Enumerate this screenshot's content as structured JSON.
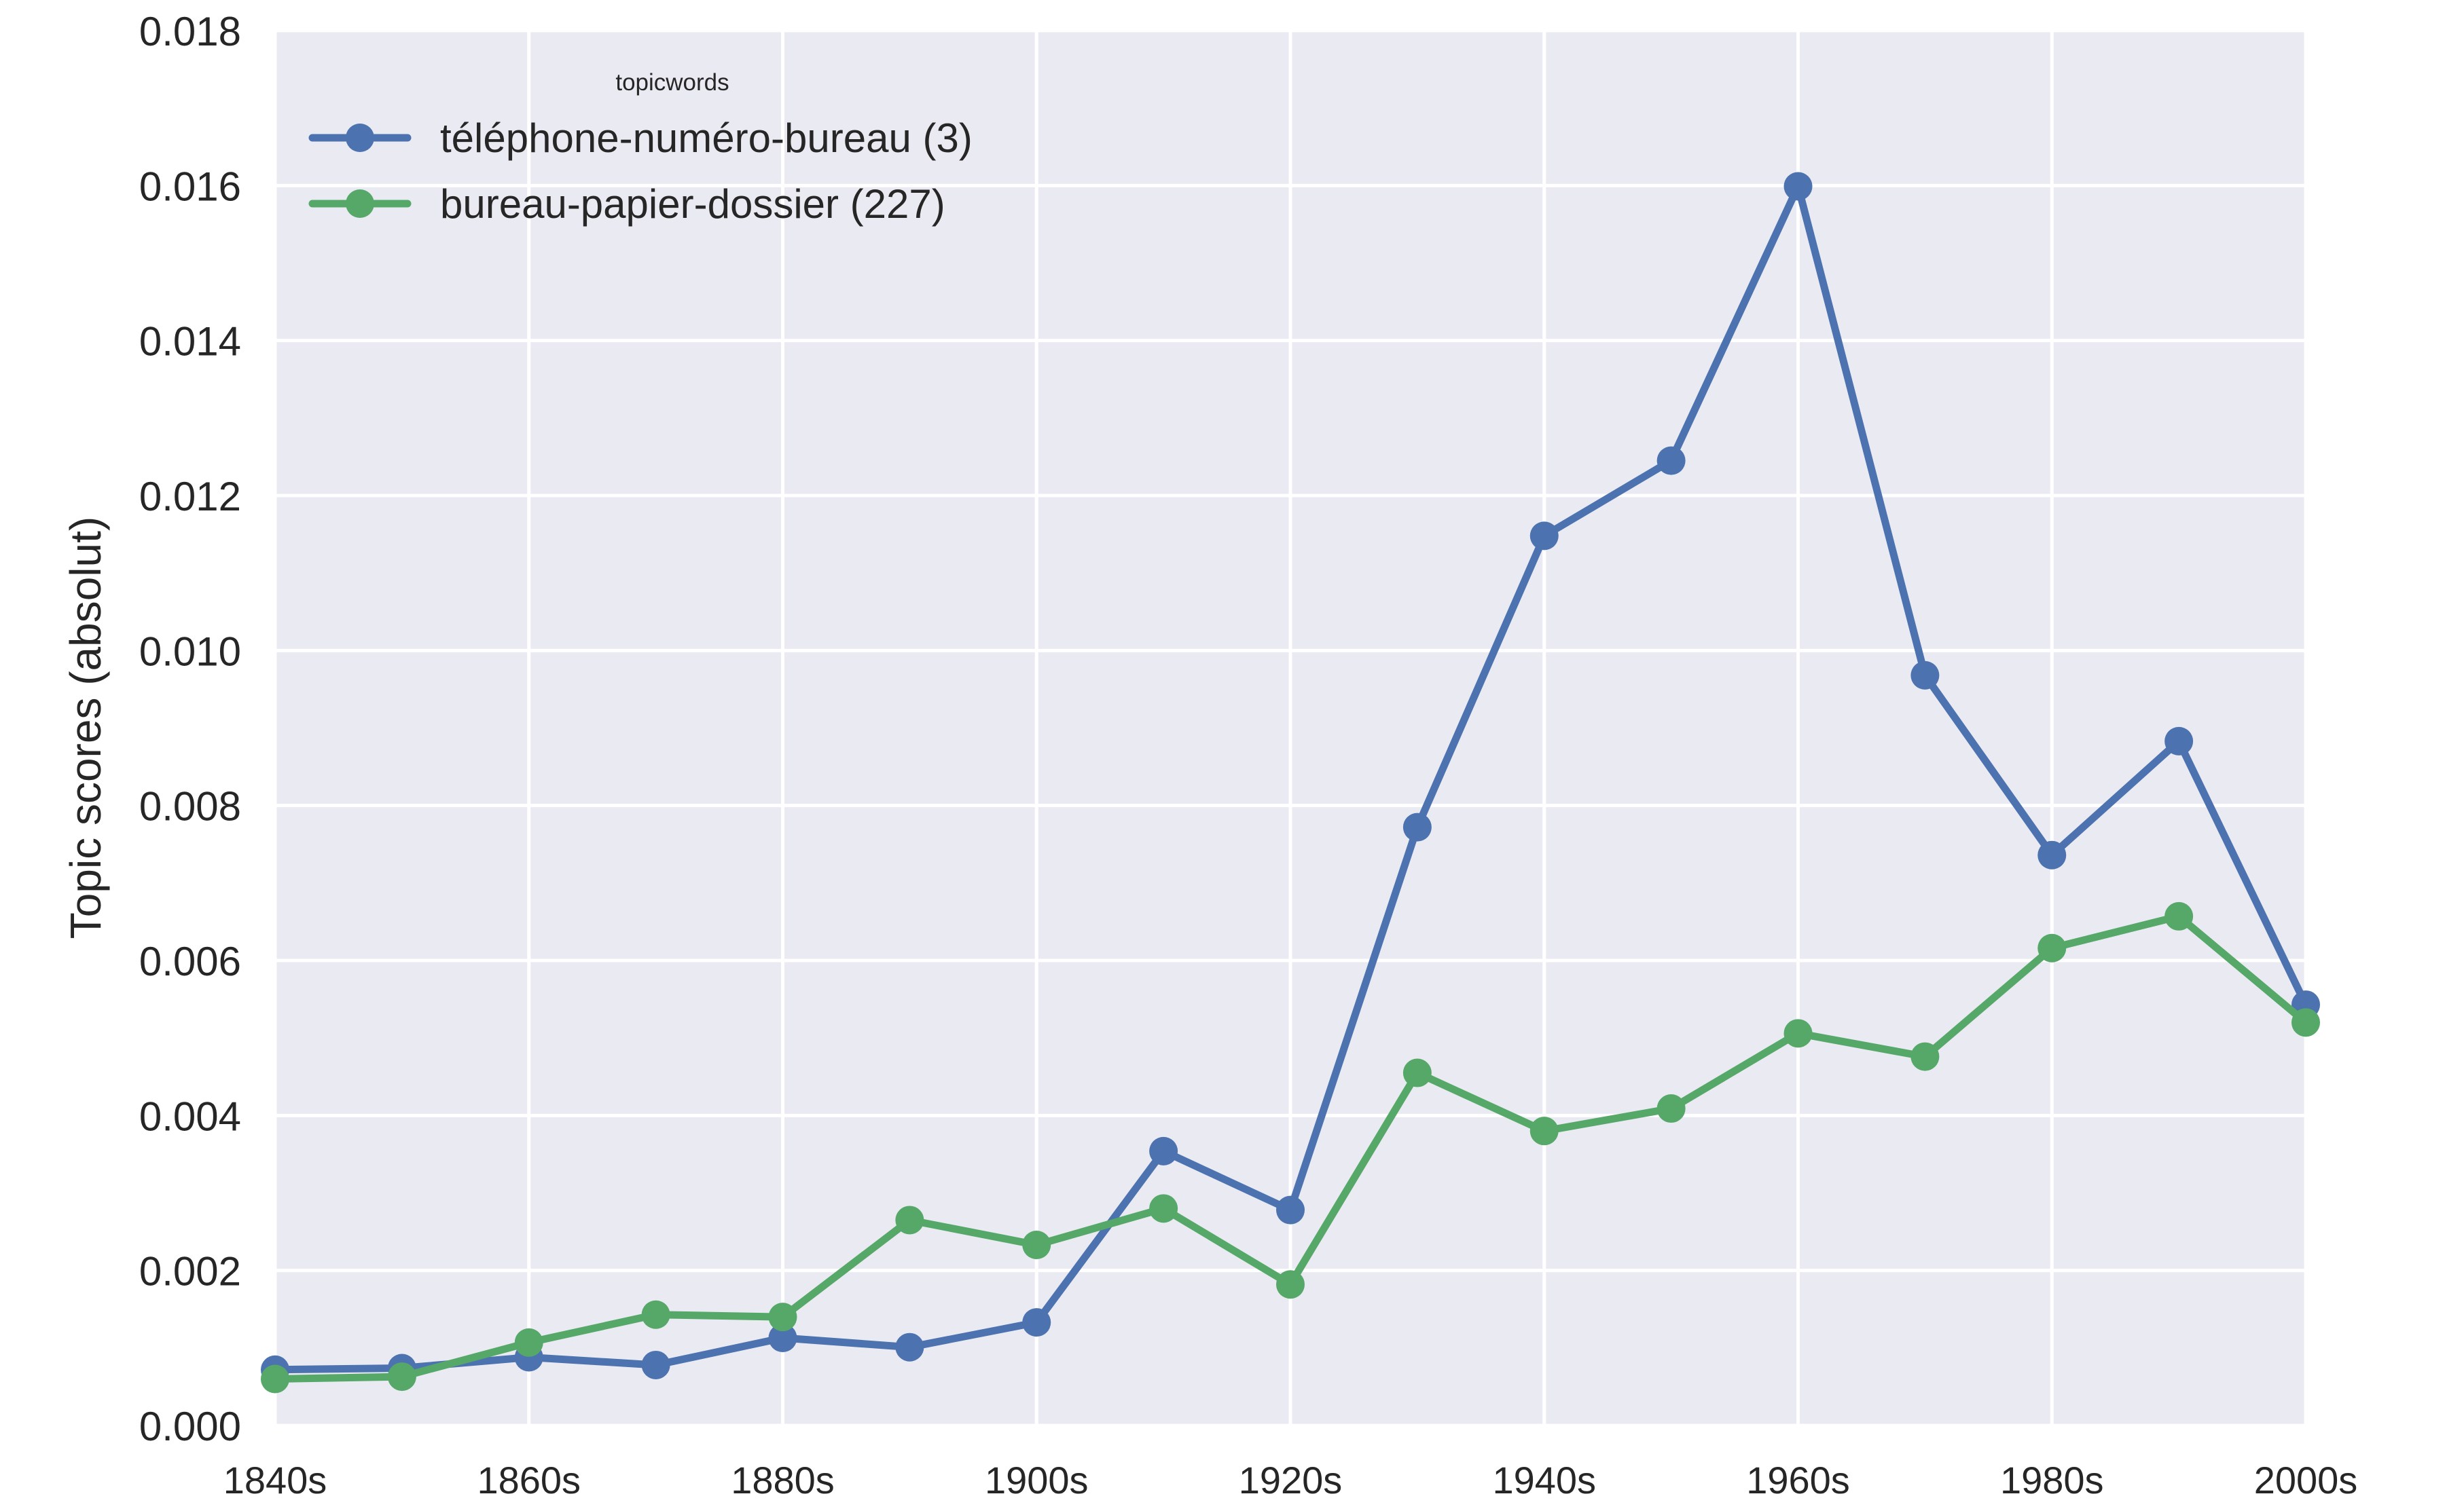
{
  "chart_data": {
    "type": "line",
    "title": "",
    "xlabel": "",
    "ylabel": "Topic scores (absolut)",
    "x": [
      "1840s",
      "1850s",
      "1860s",
      "1870s",
      "1880s",
      "1890s",
      "1900s",
      "1910s",
      "1920s",
      "1930s",
      "1940s",
      "1950s",
      "1960s",
      "1970s",
      "1980s",
      "1990s",
      "2000s"
    ],
    "xtick_labels": [
      "1840s",
      "1860s",
      "1880s",
      "1900s",
      "1920s",
      "1940s",
      "1960s",
      "1980s",
      "2000s"
    ],
    "ylim": [
      0,
      0.018
    ],
    "ytick_values": [
      0,
      0.002,
      0.004,
      0.006,
      0.008,
      0.01,
      0.012,
      0.014,
      0.016,
      0.018
    ],
    "ytick_labels": [
      "0.000",
      "0.002",
      "0.004",
      "0.006",
      "0.008",
      "0.010",
      "0.012",
      "0.014",
      "0.016",
      "0.018"
    ],
    "grid": true,
    "legend": {
      "title": "topicwords",
      "placement": "top-left"
    },
    "series": [
      {
        "name": "téléphone-numéro-bureau (3)",
        "color": "#4C72B0",
        "values": [
          0.00072,
          0.00074,
          0.00088,
          0.00078,
          0.00113,
          0.00101,
          0.00133,
          0.00354,
          0.00278,
          0.00772,
          0.01148,
          0.01245,
          0.01599,
          0.00968,
          0.00736,
          0.00883,
          0.00543
        ]
      },
      {
        "name": "bureau-papier-dossier (227)",
        "color": "#55A868",
        "values": [
          0.0006,
          0.00063,
          0.00107,
          0.00143,
          0.0014,
          0.00265,
          0.00233,
          0.0028,
          0.00182,
          0.00455,
          0.0038,
          0.00409,
          0.00506,
          0.00476,
          0.00616,
          0.00657,
          0.0052
        ]
      }
    ]
  }
}
